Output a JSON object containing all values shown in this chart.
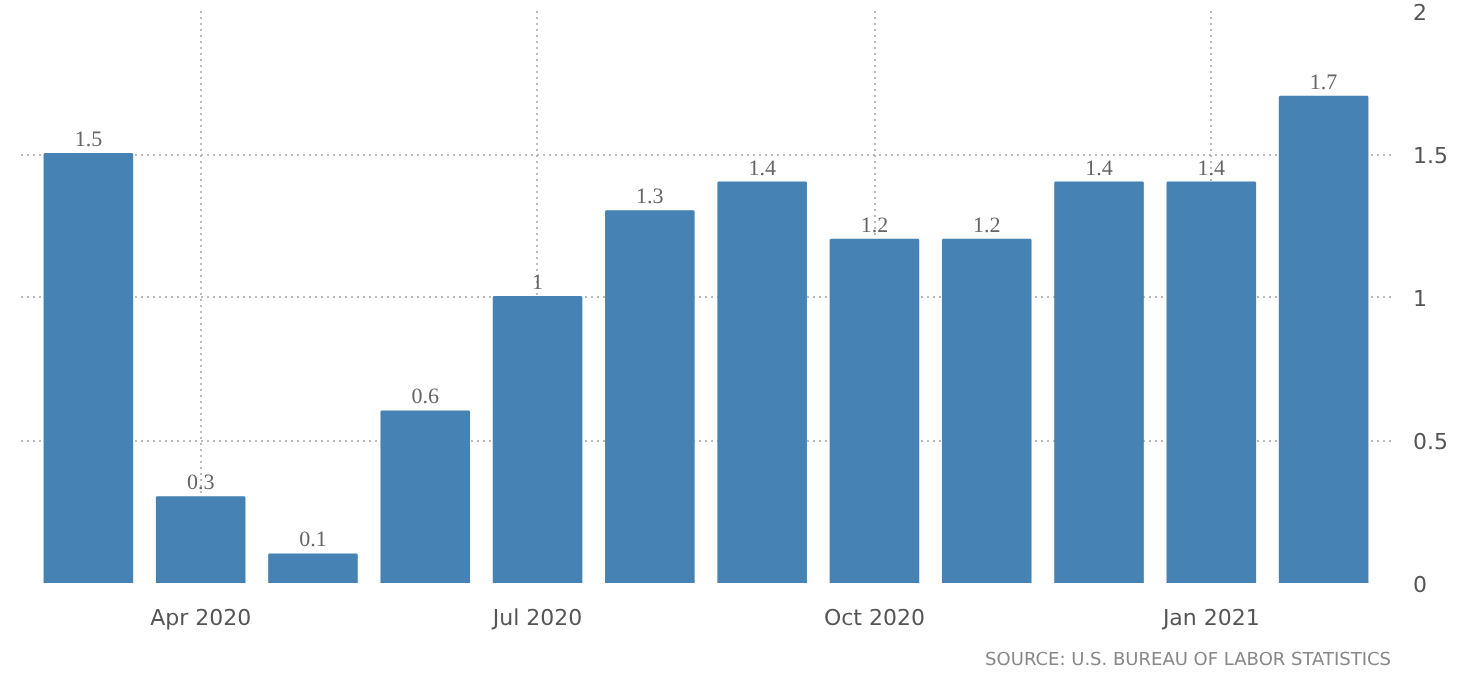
{
  "chart_data": {
    "type": "bar",
    "categories": [
      null,
      "Apr 2020",
      null,
      null,
      "Jul 2020",
      null,
      null,
      "Oct 2020",
      null,
      null,
      "Jan 2021",
      null
    ],
    "values": [
      1.5,
      0.3,
      0.1,
      0.6,
      1,
      1.3,
      1.4,
      1.2,
      1.2,
      1.4,
      1.4,
      1.7
    ],
    "color": "#4682b4",
    "ylim": [
      0,
      2
    ],
    "yticks": [
      0,
      0.5,
      1,
      1.5,
      2
    ],
    "grid": true,
    "data_labels": true,
    "annotations": [
      "SOURCE: U.S. BUREAU OF LABOR STATISTICS"
    ]
  }
}
